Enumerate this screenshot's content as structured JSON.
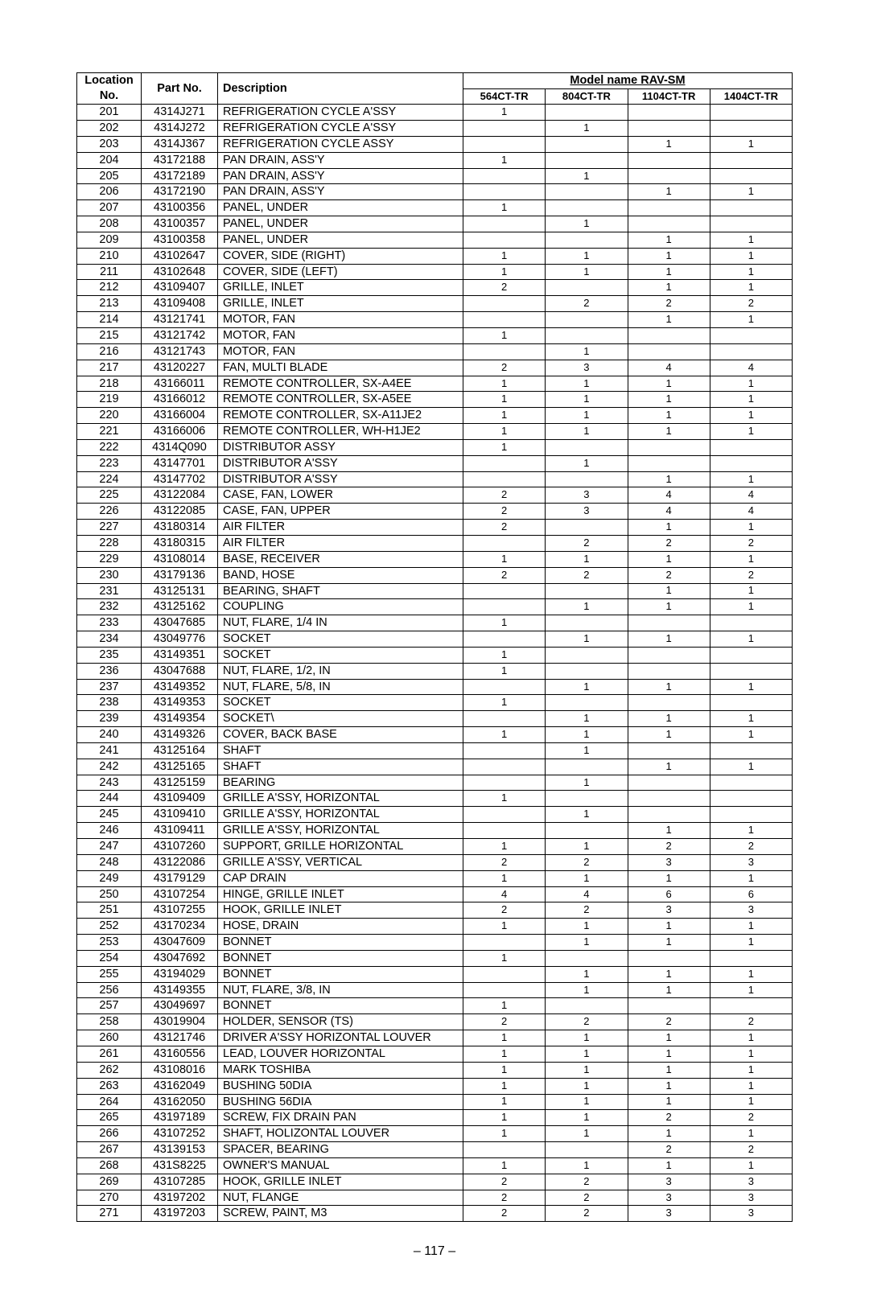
{
  "header": {
    "location": "Location",
    "locationNo": "No.",
    "partNo": "Part No.",
    "description": "Description",
    "modelName": "Model name    RAV-SM",
    "models": [
      "564CT-TR",
      "804CT-TR",
      "1104CT-TR",
      "1404CT-TR"
    ]
  },
  "pageNumber": "– 117 –",
  "rows": [
    {
      "loc": "201",
      "part": "4314J271",
      "desc": "REFRIGERATION CYCLE A'SSY",
      "m": [
        "1",
        "",
        "",
        ""
      ]
    },
    {
      "loc": "202",
      "part": "4314J272",
      "desc": "REFRIGERATION CYCLE A'SSY",
      "m": [
        "",
        "1",
        "",
        ""
      ]
    },
    {
      "loc": "203",
      "part": "4314J367",
      "desc": "REFRIGERATION CYCLE ASSY",
      "m": [
        "",
        "",
        "1",
        "1"
      ]
    },
    {
      "loc": "204",
      "part": "43172188",
      "desc": "PAN DRAIN, ASS'Y",
      "m": [
        "1",
        "",
        "",
        ""
      ]
    },
    {
      "loc": "205",
      "part": "43172189",
      "desc": "PAN DRAIN, ASS'Y",
      "m": [
        "",
        "1",
        "",
        ""
      ]
    },
    {
      "loc": "206",
      "part": "43172190",
      "desc": "PAN DRAIN, ASS'Y",
      "m": [
        "",
        "",
        "1",
        "1"
      ]
    },
    {
      "loc": "207",
      "part": "43100356",
      "desc": "PANEL, UNDER",
      "m": [
        "1",
        "",
        "",
        ""
      ]
    },
    {
      "loc": "208",
      "part": "43100357",
      "desc": "PANEL, UNDER",
      "m": [
        "",
        "1",
        "",
        ""
      ]
    },
    {
      "loc": "209",
      "part": "43100358",
      "desc": "PANEL, UNDER",
      "m": [
        "",
        "",
        "1",
        "1"
      ]
    },
    {
      "loc": "210",
      "part": "43102647",
      "desc": "COVER, SIDE (RIGHT)",
      "m": [
        "1",
        "1",
        "1",
        "1"
      ]
    },
    {
      "loc": "211",
      "part": "43102648",
      "desc": "COVER, SIDE (LEFT)",
      "m": [
        "1",
        "1",
        "1",
        "1"
      ]
    },
    {
      "loc": "212",
      "part": "43109407",
      "desc": "GRILLE, INLET",
      "m": [
        "2",
        "",
        "1",
        "1"
      ]
    },
    {
      "loc": "213",
      "part": "43109408",
      "desc": "GRILLE, INLET",
      "m": [
        "",
        "2",
        "2",
        "2"
      ]
    },
    {
      "loc": "214",
      "part": "43121741",
      "desc": "MOTOR, FAN",
      "m": [
        "",
        "",
        "1",
        "1"
      ]
    },
    {
      "loc": "215",
      "part": "43121742",
      "desc": "MOTOR, FAN",
      "m": [
        "1",
        "",
        "",
        ""
      ]
    },
    {
      "loc": "216",
      "part": "43121743",
      "desc": "MOTOR, FAN",
      "m": [
        "",
        "1",
        "",
        ""
      ]
    },
    {
      "loc": "217",
      "part": "43120227",
      "desc": "FAN, MULTI BLADE",
      "m": [
        "2",
        "3",
        "4",
        "4"
      ]
    },
    {
      "loc": "218",
      "part": "43166011",
      "desc": "REMOTE CONTROLLER, SX-A4EE",
      "m": [
        "1",
        "1",
        "1",
        "1"
      ]
    },
    {
      "loc": "219",
      "part": "43166012",
      "desc": "REMOTE CONTROLLER, SX-A5EE",
      "m": [
        "1",
        "1",
        "1",
        "1"
      ]
    },
    {
      "loc": "220",
      "part": "43166004",
      "desc": "REMOTE CONTROLLER, SX-A11JE2",
      "m": [
        "1",
        "1",
        "1",
        "1"
      ]
    },
    {
      "loc": "221",
      "part": "43166006",
      "desc": "REMOTE CONTROLLER, WH-H1JE2",
      "m": [
        "1",
        "1",
        "1",
        "1"
      ]
    },
    {
      "loc": "222",
      "part": "4314Q090",
      "desc": "DISTRIBUTOR ASSY",
      "m": [
        "1",
        "",
        "",
        ""
      ]
    },
    {
      "loc": "223",
      "part": "43147701",
      "desc": "DISTRIBUTOR A'SSY",
      "m": [
        "",
        "1",
        "",
        ""
      ]
    },
    {
      "loc": "224",
      "part": "43147702",
      "desc": "DISTRIBUTOR A'SSY",
      "m": [
        "",
        "",
        "1",
        "1"
      ]
    },
    {
      "loc": "225",
      "part": "43122084",
      "desc": "CASE, FAN, LOWER",
      "m": [
        "2",
        "3",
        "4",
        "4"
      ]
    },
    {
      "loc": "226",
      "part": "43122085",
      "desc": "CASE, FAN, UPPER",
      "m": [
        "2",
        "3",
        "4",
        "4"
      ]
    },
    {
      "loc": "227",
      "part": "43180314",
      "desc": "AIR FILTER",
      "m": [
        "2",
        "",
        "1",
        "1"
      ]
    },
    {
      "loc": "228",
      "part": "43180315",
      "desc": "AIR FILTER",
      "m": [
        "",
        "2",
        "2",
        "2"
      ]
    },
    {
      "loc": "229",
      "part": "43108014",
      "desc": "BASE, RECEIVER",
      "m": [
        "1",
        "1",
        "1",
        "1"
      ]
    },
    {
      "loc": "230",
      "part": "43179136",
      "desc": "BAND, HOSE",
      "m": [
        "2",
        "2",
        "2",
        "2"
      ]
    },
    {
      "loc": "231",
      "part": "43125131",
      "desc": "BEARING, SHAFT",
      "m": [
        "",
        "",
        "1",
        "1"
      ]
    },
    {
      "loc": "232",
      "part": "43125162",
      "desc": "COUPLING",
      "m": [
        "",
        "1",
        "1",
        "1"
      ]
    },
    {
      "loc": "233",
      "part": "43047685",
      "desc": "NUT, FLARE, 1/4 IN",
      "m": [
        "1",
        "",
        "",
        ""
      ]
    },
    {
      "loc": "234",
      "part": "43049776",
      "desc": "SOCKET",
      "m": [
        "",
        "1",
        "1",
        "1"
      ]
    },
    {
      "loc": "235",
      "part": "43149351",
      "desc": "SOCKET",
      "m": [
        "1",
        "",
        "",
        ""
      ]
    },
    {
      "loc": "236",
      "part": "43047688",
      "desc": "NUT, FLARE, 1/2, IN",
      "m": [
        "1",
        "",
        "",
        ""
      ]
    },
    {
      "loc": "237",
      "part": "43149352",
      "desc": "NUT, FLARE, 5/8, IN",
      "m": [
        "",
        "1",
        "1",
        "1"
      ]
    },
    {
      "loc": "238",
      "part": "43149353",
      "desc": "SOCKET",
      "m": [
        "1",
        "",
        "",
        ""
      ]
    },
    {
      "loc": "239",
      "part": "43149354",
      "desc": "SOCKET\\",
      "m": [
        "",
        "1",
        "1",
        "1"
      ]
    },
    {
      "loc": "240",
      "part": "43149326",
      "desc": "COVER, BACK BASE",
      "m": [
        "1",
        "1",
        "1",
        "1"
      ]
    },
    {
      "loc": "241",
      "part": "43125164",
      "desc": "SHAFT",
      "m": [
        "",
        "1",
        "",
        ""
      ]
    },
    {
      "loc": "242",
      "part": "43125165",
      "desc": "SHAFT",
      "m": [
        "",
        "",
        "1",
        "1"
      ]
    },
    {
      "loc": "243",
      "part": "43125159",
      "desc": "BEARING",
      "m": [
        "",
        "1",
        "",
        ""
      ]
    },
    {
      "loc": "244",
      "part": "43109409",
      "desc": "GRILLE A'SSY, HORIZONTAL",
      "m": [
        "1",
        "",
        "",
        ""
      ]
    },
    {
      "loc": "245",
      "part": "43109410",
      "desc": "GRILLE A'SSY, HORIZONTAL",
      "m": [
        "",
        "1",
        "",
        ""
      ]
    },
    {
      "loc": "246",
      "part": "43109411",
      "desc": "GRILLE A'SSY, HORIZONTAL",
      "m": [
        "",
        "",
        "1",
        "1"
      ]
    },
    {
      "loc": "247",
      "part": "43107260",
      "desc": "SUPPORT, GRILLE HORIZONTAL",
      "m": [
        "1",
        "1",
        "2",
        "2"
      ]
    },
    {
      "loc": "248",
      "part": "43122086",
      "desc": "GRILLE A'SSY, VERTICAL",
      "m": [
        "2",
        "2",
        "3",
        "3"
      ]
    },
    {
      "loc": "249",
      "part": "43179129",
      "desc": "CAP DRAIN",
      "m": [
        "1",
        "1",
        "1",
        "1"
      ]
    },
    {
      "loc": "250",
      "part": "43107254",
      "desc": "HINGE, GRILLE INLET",
      "m": [
        "4",
        "4",
        "6",
        "6"
      ]
    },
    {
      "loc": "251",
      "part": "43107255",
      "desc": "HOOK, GRILLE INLET",
      "m": [
        "2",
        "2",
        "3",
        "3"
      ]
    },
    {
      "loc": "252",
      "part": "43170234",
      "desc": "HOSE, DRAIN",
      "m": [
        "1",
        "1",
        "1",
        "1"
      ]
    },
    {
      "loc": "253",
      "part": "43047609",
      "desc": "BONNET",
      "m": [
        "",
        "1",
        "1",
        "1"
      ]
    },
    {
      "loc": "254",
      "part": "43047692",
      "desc": "BONNET",
      "m": [
        "1",
        "",
        "",
        ""
      ]
    },
    {
      "loc": "255",
      "part": "43194029",
      "desc": "BONNET",
      "m": [
        "",
        "1",
        "1",
        "1"
      ]
    },
    {
      "loc": "256",
      "part": "43149355",
      "desc": "NUT, FLARE, 3/8, IN",
      "m": [
        "",
        "1",
        "1",
        "1"
      ]
    },
    {
      "loc": "257",
      "part": "43049697",
      "desc": "BONNET",
      "m": [
        "1",
        "",
        "",
        ""
      ]
    },
    {
      "loc": "258",
      "part": "43019904",
      "desc": "HOLDER, SENSOR (TS)",
      "m": [
        "2",
        "2",
        "2",
        "2"
      ]
    },
    {
      "loc": "260",
      "part": "43121746",
      "desc": "DRIVER A'SSY HORIZONTAL LOUVER",
      "m": [
        "1",
        "1",
        "1",
        "1"
      ]
    },
    {
      "loc": "261",
      "part": "43160556",
      "desc": "LEAD, LOUVER HORIZONTAL",
      "m": [
        "1",
        "1",
        "1",
        "1"
      ]
    },
    {
      "loc": "262",
      "part": "43108016",
      "desc": "MARK TOSHIBA",
      "m": [
        "1",
        "1",
        "1",
        "1"
      ]
    },
    {
      "loc": "263",
      "part": "43162049",
      "desc": "BUSHING 50DIA",
      "m": [
        "1",
        "1",
        "1",
        "1"
      ]
    },
    {
      "loc": "264",
      "part": "43162050",
      "desc": "BUSHING 56DIA",
      "m": [
        "1",
        "1",
        "1",
        "1"
      ]
    },
    {
      "loc": "265",
      "part": "43197189",
      "desc": "SCREW, FIX DRAIN PAN",
      "m": [
        "1",
        "1",
        "2",
        "2"
      ]
    },
    {
      "loc": "266",
      "part": "43107252",
      "desc": "SHAFT, HOLIZONTAL LOUVER",
      "m": [
        "1",
        "1",
        "1",
        "1"
      ]
    },
    {
      "loc": "267",
      "part": "43139153",
      "desc": "SPACER, BEARING",
      "m": [
        "",
        "",
        "2",
        "2"
      ]
    },
    {
      "loc": "268",
      "part": "431S8225",
      "desc": "OWNER'S MANUAL",
      "m": [
        "1",
        "1",
        "1",
        "1"
      ]
    },
    {
      "loc": "269",
      "part": "43107285",
      "desc": "HOOK, GRILLE INLET",
      "m": [
        "2",
        "2",
        "3",
        "3"
      ]
    },
    {
      "loc": "270",
      "part": "43197202",
      "desc": "NUT, FLANGE",
      "m": [
        "2",
        "2",
        "3",
        "3"
      ]
    },
    {
      "loc": "271",
      "part": "43197203",
      "desc": "SCREW, PAINT, M3",
      "m": [
        "2",
        "2",
        "3",
        "3"
      ]
    }
  ]
}
